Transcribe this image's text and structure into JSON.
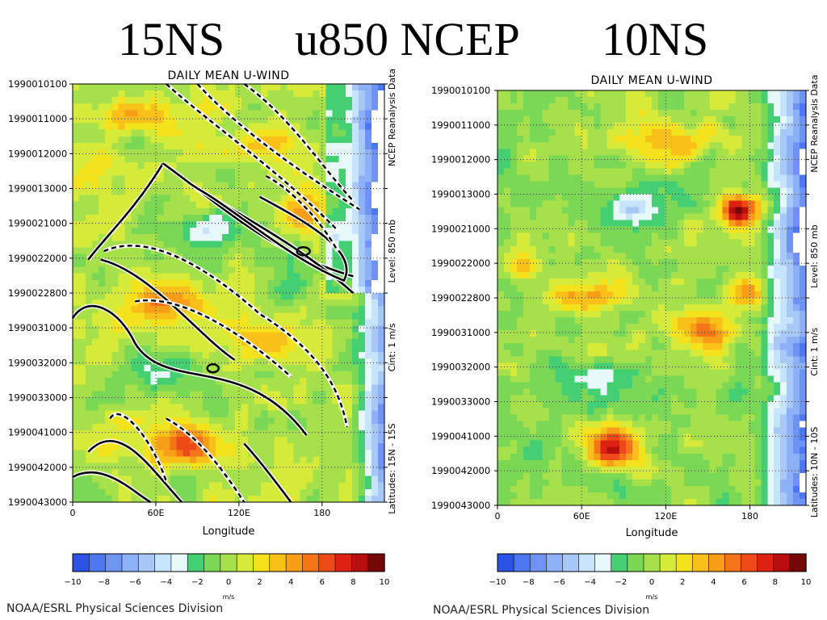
{
  "title": {
    "left": "15NS",
    "center": "u850 NCEP",
    "right": "10NS"
  },
  "colorbar": {
    "colors": [
      "#2a52e6",
      "#4b78f0",
      "#6f93f3",
      "#8db0f6",
      "#a8c8f8",
      "#c6e4fb",
      "#e6f8f8",
      "#44cf73",
      "#7ad854",
      "#a6e04a",
      "#d6ea3a",
      "#f4e31c",
      "#f8c018",
      "#f79d17",
      "#f67418",
      "#ee4a17",
      "#dd2214",
      "#b90e0e",
      "#740808"
    ],
    "ticks": [
      -10,
      -8,
      -6,
      -4,
      -2,
      0,
      2,
      4,
      6,
      8,
      10
    ],
    "unit": "m/s"
  },
  "chart_data": [
    {
      "type": "heatmap",
      "panel": "left",
      "title": "DAILY MEAN U-WIND",
      "xlabel": "Longitude",
      "xticks": [
        {
          "value": 0,
          "label": "0"
        },
        {
          "value": 60,
          "label": "60E"
        },
        {
          "value": 120,
          "label": "120E"
        },
        {
          "value": 180,
          "label": "180"
        }
      ],
      "xlim": [
        0,
        225
      ],
      "yticks": [
        "1990010100",
        "1990011000",
        "1990012000",
        "1990013000",
        "1990021000",
        "1990022000",
        "1990022800",
        "1990031000",
        "1990032000",
        "1990033000",
        "1990041000",
        "1990042000",
        "1990043000"
      ],
      "ylim": [
        "1990010100",
        "1990043000"
      ],
      "right_labels": [
        "NCEP Reanalysis Data",
        "Level: 850 mb",
        "Cint: 1 m/s",
        "Latitudes: 15N - 15S"
      ],
      "colorbar_range": [
        -10,
        10
      ],
      "overlay_contours": true,
      "credit": "NOAA/ESRL Physical Sciences Division"
    },
    {
      "type": "heatmap",
      "panel": "right",
      "title": "DAILY MEAN U-WIND",
      "xlabel": "Longitude",
      "xticks": [
        {
          "value": 0,
          "label": "0"
        },
        {
          "value": 60,
          "label": "60E"
        },
        {
          "value": 120,
          "label": "120E"
        },
        {
          "value": 180,
          "label": "180"
        }
      ],
      "xlim": [
        0,
        220
      ],
      "yticks": [
        "1990010100",
        "1990011000",
        "1990012000",
        "1990013000",
        "1990021000",
        "1990022000",
        "1990022800",
        "1990031000",
        "1990032000",
        "1990033000",
        "1990041000",
        "1990042000",
        "1990043000"
      ],
      "ylim": [
        "1990010100",
        "1990043000"
      ],
      "right_labels": [
        "NCEP Reanalysis Data",
        "Level: 850 mb",
        "Cint: 1 m/s",
        "Latitudes: 10N - 10S"
      ],
      "colorbar_range": [
        -10,
        10
      ],
      "overlay_contours": false,
      "credit": "NOAA/ESRL Physical Sciences Division"
    }
  ]
}
